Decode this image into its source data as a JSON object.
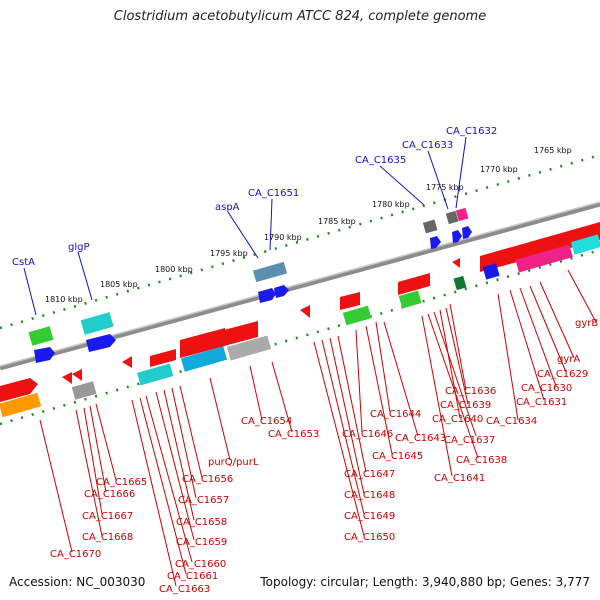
{
  "title": "Clostridium acetobutylicum ATCC 824, complete genome",
  "accession": "Accession: NC_003030",
  "topology": "Topology: circular; Length: 3,940,880 bp; Genes: 3,777",
  "colors": {
    "backbone": "#8c8c8c",
    "forward_gene": "#1a1aee",
    "reverse_gene": "#ee1111",
    "tick": "#1f8a1f",
    "forward_label": "#1010cc",
    "reverse_label": "#cc0000"
  },
  "kbp_labels": [
    "1765 kbp",
    "1770 kbp",
    "1775 kbp",
    "1780 kbp",
    "1785 kbp",
    "1790 kbp",
    "1795 kbp",
    "1800 kbp",
    "1805 kbp",
    "1810 kbp"
  ],
  "forward_labels": [
    "CA_C1632",
    "CA_C1633",
    "CA_C1635",
    "CA_C1651",
    "aspA",
    "glgP",
    "CstA"
  ],
  "reverse_labels": [
    "gyrB",
    "gyrA",
    "CA_C1629",
    "CA_C1630",
    "CA_C1631",
    "CA_C1634",
    "CA_C1636",
    "CA_C1639",
    "CA_C1640",
    "CA_C1637",
    "CA_C1638",
    "CA_C1641",
    "CA_C1644",
    "CA_C1643",
    "CA_C1646",
    "CA_C1645",
    "CA_C1647",
    "CA_C1648",
    "CA_C1649",
    "CA_C1650",
    "CA_C1654",
    "CA_C1653",
    "purQ/purL",
    "CA_C1656",
    "CA_C1657",
    "CA_C1658",
    "CA_C1659",
    "CA_C1660",
    "CA_C1661",
    "CA_C1663",
    "CA_C1665",
    "CA_C1666",
    "CA_C1667",
    "CA_C1668",
    "CA_C1670"
  ]
}
